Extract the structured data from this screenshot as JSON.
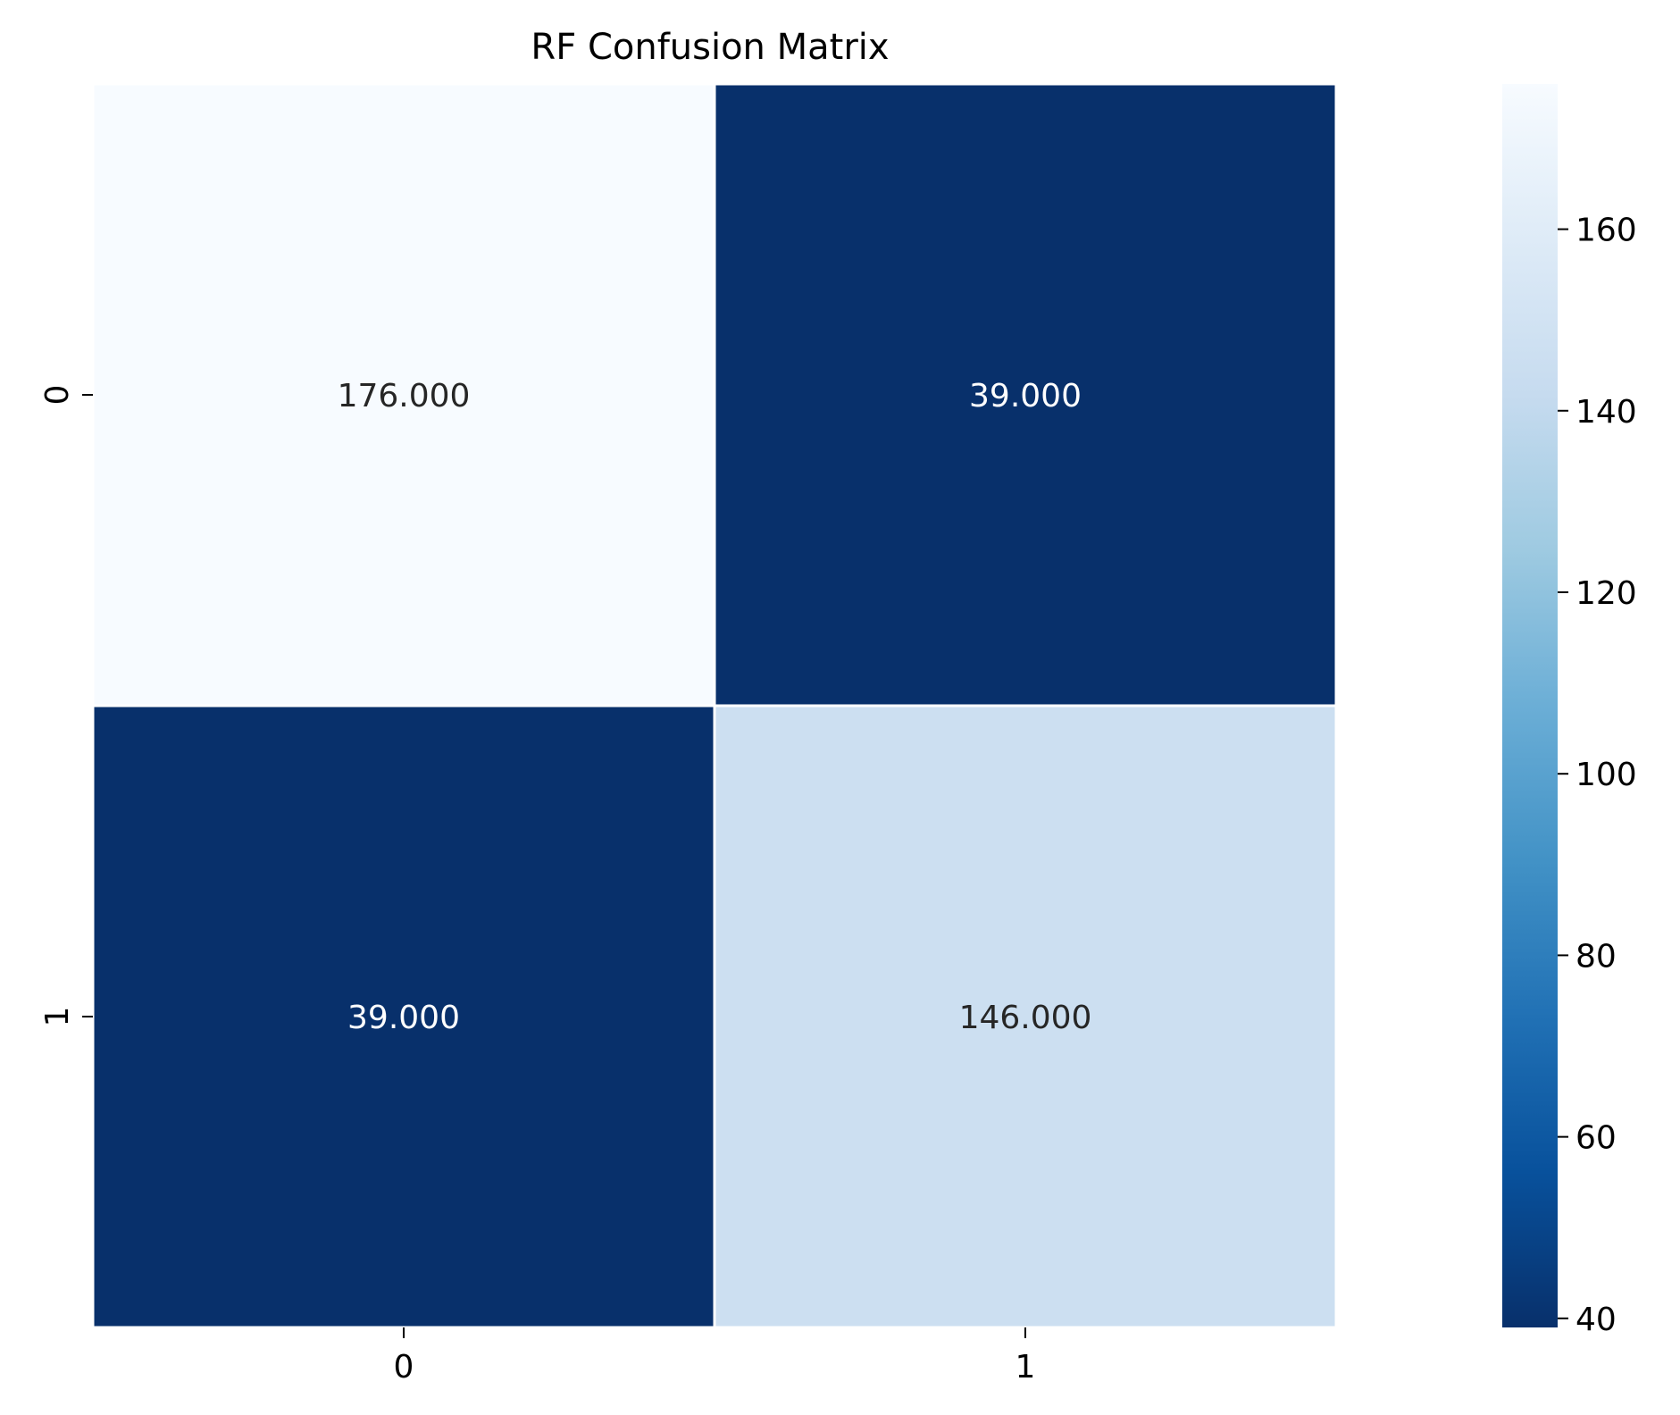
{
  "chart_data": {
    "type": "heatmap",
    "title": "RF Confusion Matrix",
    "xlabel": "",
    "ylabel": "",
    "x_categories": [
      "0",
      "1"
    ],
    "y_categories": [
      "0",
      "1"
    ],
    "values": [
      [
        176,
        39
      ],
      [
        39,
        146
      ]
    ],
    "value_labels": [
      [
        "176.000",
        "39.000"
      ],
      [
        "39.000",
        "146.000"
      ]
    ],
    "colormap": "Blues",
    "colorbar": {
      "min": 39,
      "max": 176,
      "ticks": [
        40,
        60,
        80,
        100,
        120,
        140,
        160
      ],
      "tick_labels": [
        "40",
        "60",
        "80",
        "100",
        "120",
        "140",
        "160"
      ]
    },
    "grid": false,
    "cell_border_color": "#ffffff",
    "text_color_light": "#ffffff",
    "text_color_dark": "#262626"
  }
}
